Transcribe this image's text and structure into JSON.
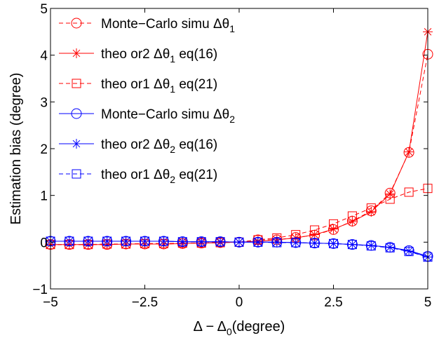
{
  "chart_data": {
    "type": "line",
    "xlabel": "Δ − Δ",
    "xlabel_sub": "0",
    "xlabel_suffix": "(degree)",
    "ylabel": "Estimation bias (degree)",
    "xlim": [
      -5,
      5
    ],
    "ylim": [
      -1,
      5
    ],
    "xticks": [
      -5,
      -2.5,
      0,
      2.5,
      5
    ],
    "xtick_labels": [
      "−5",
      "−2.5",
      "0",
      "2.5",
      "5"
    ],
    "yticks": [
      -1,
      0,
      1,
      2,
      3,
      4,
      5
    ],
    "ytick_labels": [
      "−1",
      "0",
      "1",
      "2",
      "3",
      "4",
      "5"
    ],
    "grid": false,
    "legend_position": "top-left",
    "x": [
      -5,
      -4.5,
      -4,
      -3.5,
      -3,
      -2.5,
      -2,
      -1.5,
      -1,
      -0.5,
      0,
      0.5,
      1,
      1.5,
      2,
      2.5,
      3,
      3.5,
      4,
      4.5,
      5
    ],
    "series": [
      {
        "name": "Monte−Carlo simu Δθ",
        "sub": "1",
        "suffix": "",
        "color": "#ff0000",
        "marker": "circle",
        "dash": "dashed",
        "values": [
          -0.05,
          -0.05,
          -0.05,
          -0.05,
          -0.04,
          -0.04,
          -0.04,
          -0.03,
          -0.02,
          -0.01,
          0.0,
          0.05,
          0.05,
          0.1,
          0.15,
          0.27,
          0.45,
          0.67,
          1.05,
          1.92,
          4.02
        ]
      },
      {
        "name": "theo or2 Δθ",
        "sub": "1",
        "suffix": " eq(16)",
        "color": "#ff0000",
        "marker": "star",
        "dash": "solid",
        "values": [
          -0.05,
          -0.05,
          -0.05,
          -0.05,
          -0.04,
          -0.04,
          -0.04,
          -0.03,
          -0.02,
          -0.01,
          0.0,
          0.02,
          0.05,
          0.09,
          0.16,
          0.28,
          0.44,
          0.65,
          1.03,
          1.93,
          4.5
        ]
      },
      {
        "name": "theo or1 Δθ",
        "sub": "1",
        "suffix": " eq(21)",
        "color": "#ff0000",
        "marker": "square",
        "dash": "dashed",
        "values": [
          -0.05,
          -0.05,
          -0.05,
          -0.04,
          -0.04,
          -0.03,
          -0.03,
          -0.02,
          -0.02,
          -0.01,
          0.0,
          0.05,
          0.09,
          0.16,
          0.26,
          0.39,
          0.56,
          0.73,
          0.92,
          1.07,
          1.15
        ]
      },
      {
        "name": "Monte−Carlo simu Δθ",
        "sub": "2",
        "suffix": "",
        "color": "#0000ff",
        "marker": "circle",
        "dash": "solid",
        "values": [
          0.02,
          0.02,
          0.02,
          0.02,
          0.02,
          0.02,
          0.02,
          0.01,
          0.01,
          0.01,
          0.0,
          0.0,
          0.0,
          -0.01,
          -0.02,
          -0.03,
          -0.05,
          -0.07,
          -0.11,
          -0.18,
          -0.3
        ]
      },
      {
        "name": "theo or2 Δθ",
        "sub": "2",
        "suffix": " eq(16)",
        "color": "#0000ff",
        "marker": "star",
        "dash": "solid",
        "values": [
          0.02,
          0.02,
          0.02,
          0.02,
          0.02,
          0.02,
          0.02,
          0.01,
          0.01,
          0.01,
          0.0,
          0.0,
          0.0,
          -0.01,
          -0.02,
          -0.03,
          -0.05,
          -0.07,
          -0.11,
          -0.19,
          -0.32
        ]
      },
      {
        "name": "theo or1 Δθ",
        "sub": "2",
        "suffix": " eq(21)",
        "color": "#0000ff",
        "marker": "square",
        "dash": "dashed",
        "values": [
          0.02,
          0.02,
          0.02,
          0.02,
          0.02,
          0.02,
          0.02,
          0.01,
          0.01,
          0.01,
          0.0,
          0.0,
          -0.01,
          -0.01,
          -0.02,
          -0.03,
          -0.05,
          -0.08,
          -0.12,
          -0.2,
          -0.32
        ]
      }
    ]
  }
}
